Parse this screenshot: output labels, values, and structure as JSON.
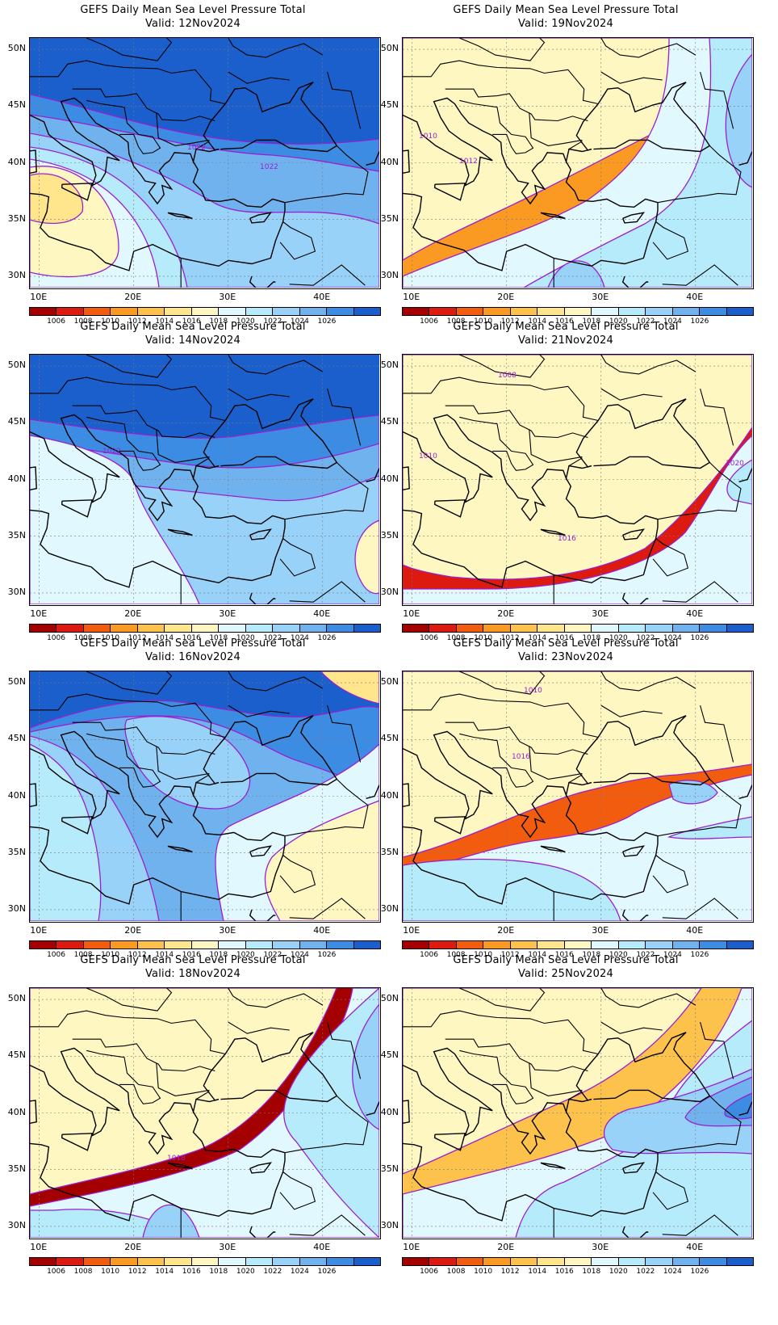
{
  "legend": {
    "colors": [
      "#a50000",
      "#dd1a0f",
      "#f25c0f",
      "#fa9a23",
      "#fdc24c",
      "#ffe58c",
      "#fff7c1",
      "#e2f8ff",
      "#b6ebfb",
      "#99d2f8",
      "#6fb2ee",
      "#3d8ce3",
      "#1a5fcc"
    ],
    "labels": [
      "1006",
      "1008",
      "1010",
      "1012",
      "1014",
      "1016",
      "1018",
      "1020",
      "1022",
      "1024",
      "1026"
    ]
  },
  "axes": {
    "lat_labels": [
      "50N",
      "45N",
      "40N",
      "35N",
      "30N"
    ],
    "lon_labels": [
      "10E",
      "20E",
      "30E",
      "40E"
    ]
  },
  "panels": [
    {
      "title": "GEFS Daily Mean Sea Level Pressure Total",
      "valid": "Valid: 12Nov2024",
      "base": "#1a5fcc",
      "bands": [
        "#3d8ce3",
        "#6fb2ee",
        "#99d2f8",
        "#b6ebfb",
        "#e2f8ff",
        "#fff7c1",
        "#ffe58c"
      ],
      "contour_labels": [
        "1022",
        "1022"
      ]
    },
    {
      "title": "GEFS Daily Mean Sea Level Pressure Total",
      "valid": "Valid: 19Nov2024",
      "base": "#fa9a23",
      "bands": [
        "#fdc24c",
        "#ffe58c",
        "#fff7c1",
        "#e2f8ff",
        "#b6ebfb",
        "#99d2f8"
      ],
      "contour_labels": [
        "1010",
        "1012"
      ]
    },
    {
      "title": "GEFS Daily Mean Sea Level Pressure Total",
      "valid": "Valid: 14Nov2024",
      "base": "#1a5fcc",
      "bands": [
        "#3d8ce3",
        "#6fb2ee",
        "#99d2f8",
        "#b6ebfb",
        "#e2f8ff",
        "#fff7c1"
      ],
      "contour_labels": [
        "1022"
      ]
    },
    {
      "title": "GEFS Daily Mean Sea Level Pressure Total",
      "valid": "Valid: 21Nov2024",
      "base": "#dd1a0f",
      "bands": [
        "#f25c0f",
        "#fa9a23",
        "#fdc24c",
        "#ffe58c",
        "#fff7c1",
        "#e2f8ff",
        "#b6ebfb"
      ],
      "contour_labels": [
        "1008",
        "1010",
        "1016",
        "1020"
      ]
    },
    {
      "title": "GEFS Daily Mean Sea Level Pressure Total",
      "valid": "Valid: 16Nov2024",
      "base": "#1a5fcc",
      "bands": [
        "#3d8ce3",
        "#6fb2ee",
        "#99d2f8",
        "#b6ebfb",
        "#e2f8ff",
        "#fff7c1",
        "#ffe58c"
      ],
      "contour_labels": []
    },
    {
      "title": "GEFS Daily Mean Sea Level Pressure Total",
      "valid": "Valid: 23Nov2024",
      "base": "#f25c0f",
      "bands": [
        "#fa9a23",
        "#fdc24c",
        "#ffe58c",
        "#fff7c1",
        "#e2f8ff",
        "#b6ebfb",
        "#99d2f8"
      ],
      "contour_labels": [
        "1010",
        "1016"
      ]
    },
    {
      "title": "GEFS Daily Mean Sea Level Pressure Total",
      "valid": "Valid: 18Nov2024",
      "base": "#a50000",
      "bands": [
        "#dd1a0f",
        "#f25c0f",
        "#fa9a23",
        "#fdc24c",
        "#ffe58c",
        "#fff7c1",
        "#e2f8ff",
        "#b6ebfb",
        "#99d2f8"
      ],
      "contour_labels": [
        "1018"
      ]
    },
    {
      "title": "GEFS Daily Mean Sea Level Pressure Total",
      "valid": "Valid: 25Nov2024",
      "base": "#fdc24c",
      "bands": [
        "#ffe58c",
        "#fff7c1",
        "#e2f8ff",
        "#b6ebfb",
        "#99d2f8",
        "#6fb2ee",
        "#3d8ce3"
      ],
      "contour_labels": []
    }
  ]
}
